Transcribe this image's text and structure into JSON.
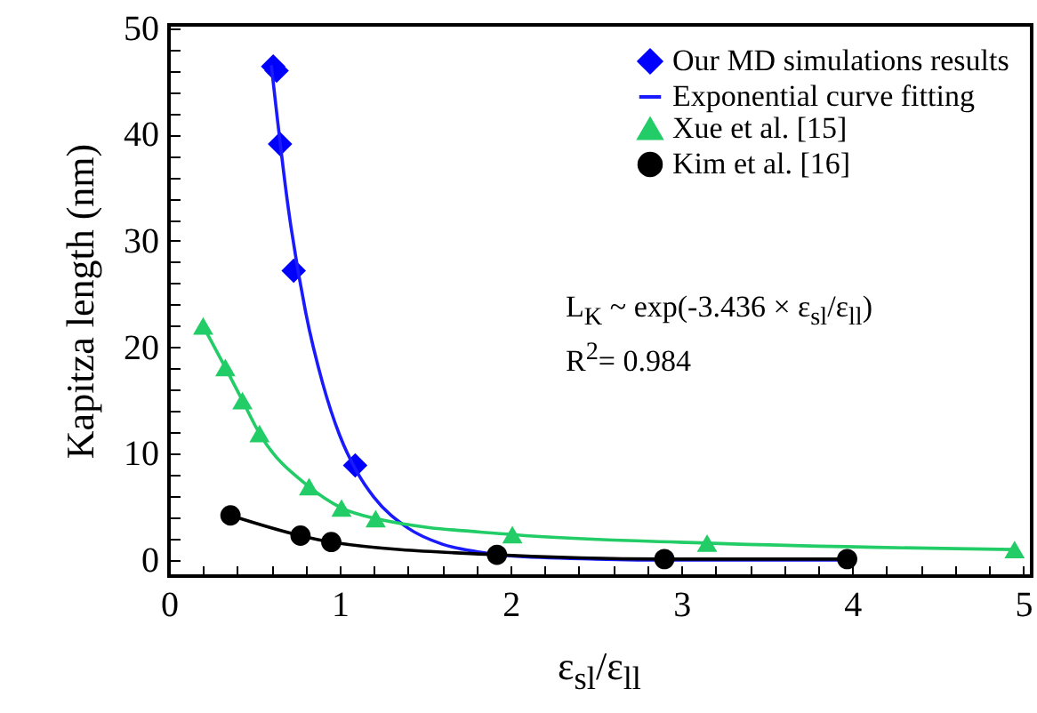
{
  "chart_data": {
    "type": "line",
    "xlabel": "ε$_{sl}$/ε$_{ll}$",
    "ylabel": "Kapitza length (nm)",
    "annotations": [
      "L$_{K}$ ~ exp(-3.436 × ε$_{sl}$/ε$_{ll}$)",
      "R$^{2}$= 0.984"
    ],
    "xlim": [
      0,
      5.05
    ],
    "ylim": [
      -1.5,
      50.3
    ],
    "xticks": [
      0,
      {
        "value": 0.2,
        "label": null
      },
      {
        "value": 0.4,
        "label": null
      },
      {
        "value": 0.6,
        "label": null
      },
      {
        "value": 0.8,
        "label": null
      },
      1,
      {
        "value": 1.2,
        "label": null
      },
      {
        "value": 1.4,
        "label": null
      },
      {
        "value": 1.6,
        "label": null
      },
      {
        "value": 1.8,
        "label": null
      },
      2,
      {
        "value": 2.2,
        "label": null
      },
      {
        "value": 2.4,
        "label": null
      },
      {
        "value": 2.6,
        "label": null
      },
      {
        "value": 2.8,
        "label": null
      },
      3,
      {
        "value": 3.2,
        "label": null
      },
      {
        "value": 3.4,
        "label": null
      },
      {
        "value": 3.6,
        "label": null
      },
      {
        "value": 3.8,
        "label": null
      },
      4,
      {
        "value": 4.2,
        "label": null
      },
      {
        "value": 4.4,
        "label": null
      },
      {
        "value": 4.6,
        "label": null
      },
      {
        "value": 4.8,
        "label": null
      },
      5
    ],
    "yticks": [
      0,
      {
        "value": 2,
        "label": null
      },
      {
        "value": 4,
        "label": null
      },
      {
        "value": 6,
        "label": null
      },
      {
        "value": 8,
        "label": null
      },
      10,
      {
        "value": 12,
        "label": null
      },
      {
        "value": 14,
        "label": null
      },
      {
        "value": 16,
        "label": null
      },
      {
        "value": 18,
        "label": null
      },
      20,
      {
        "value": 22,
        "label": null
      },
      {
        "value": 24,
        "label": null
      },
      {
        "value": 26,
        "label": null
      },
      {
        "value": 28,
        "label": null
      },
      30,
      {
        "value": 32,
        "label": null
      },
      {
        "value": 34,
        "label": null
      },
      {
        "value": 36,
        "label": null
      },
      {
        "value": 38,
        "label": null
      },
      40,
      {
        "value": 42,
        "label": null
      },
      {
        "value": 44,
        "label": null
      },
      {
        "value": 46,
        "label": null
      },
      {
        "value": 48,
        "label": null
      },
      50
    ],
    "grid": false,
    "legend": "top right",
    "line_style": "solid",
    "series": [
      {
        "name": "Our MD simulations results",
        "type": "scatter",
        "marker": "diamond",
        "color": "#0000ff",
        "x": [
          0.61,
          0.63,
          0.65,
          0.73,
          1.09
        ],
        "values": [
          46.4,
          46,
          39.1,
          27.2,
          8.9
        ]
      },
      {
        "name": "Exponential curve fitting",
        "type": "line",
        "marker": "none",
        "color": "#1a1aff",
        "x": [
          0.6,
          0.7,
          0.8,
          0.9,
          1.0,
          1.1,
          1.2,
          1.4,
          1.6,
          1.8,
          2.0,
          2.5,
          3.0,
          4.0
        ],
        "values": [
          46.4,
          32.9,
          23.3,
          16.6,
          11.7,
          8.3,
          5.9,
          3.0,
          1.5,
          0.8,
          0.4,
          0.1,
          0,
          0
        ]
      },
      {
        "name": "Xue et al. [15]",
        "type": "line",
        "marker": "triangle",
        "color": "#22cc66",
        "x": [
          0.2,
          0.33,
          0.43,
          0.53,
          0.82,
          1.01,
          1.21,
          2.01,
          3.15,
          4.95
        ],
        "values": [
          22,
          18.1,
          15,
          11.9,
          6.9,
          4.9,
          3.9,
          2.4,
          1.6,
          1.0
        ]
      },
      {
        "name": " Kim et al. [16]",
        "type": "line",
        "marker": "circle",
        "color": "#000000",
        "x": [
          0.36,
          0.77,
          0.95,
          1.92,
          2.9,
          3.97
        ],
        "values": [
          4.2,
          2.3,
          1.7,
          0.5,
          0.1,
          0.1
        ]
      }
    ]
  }
}
